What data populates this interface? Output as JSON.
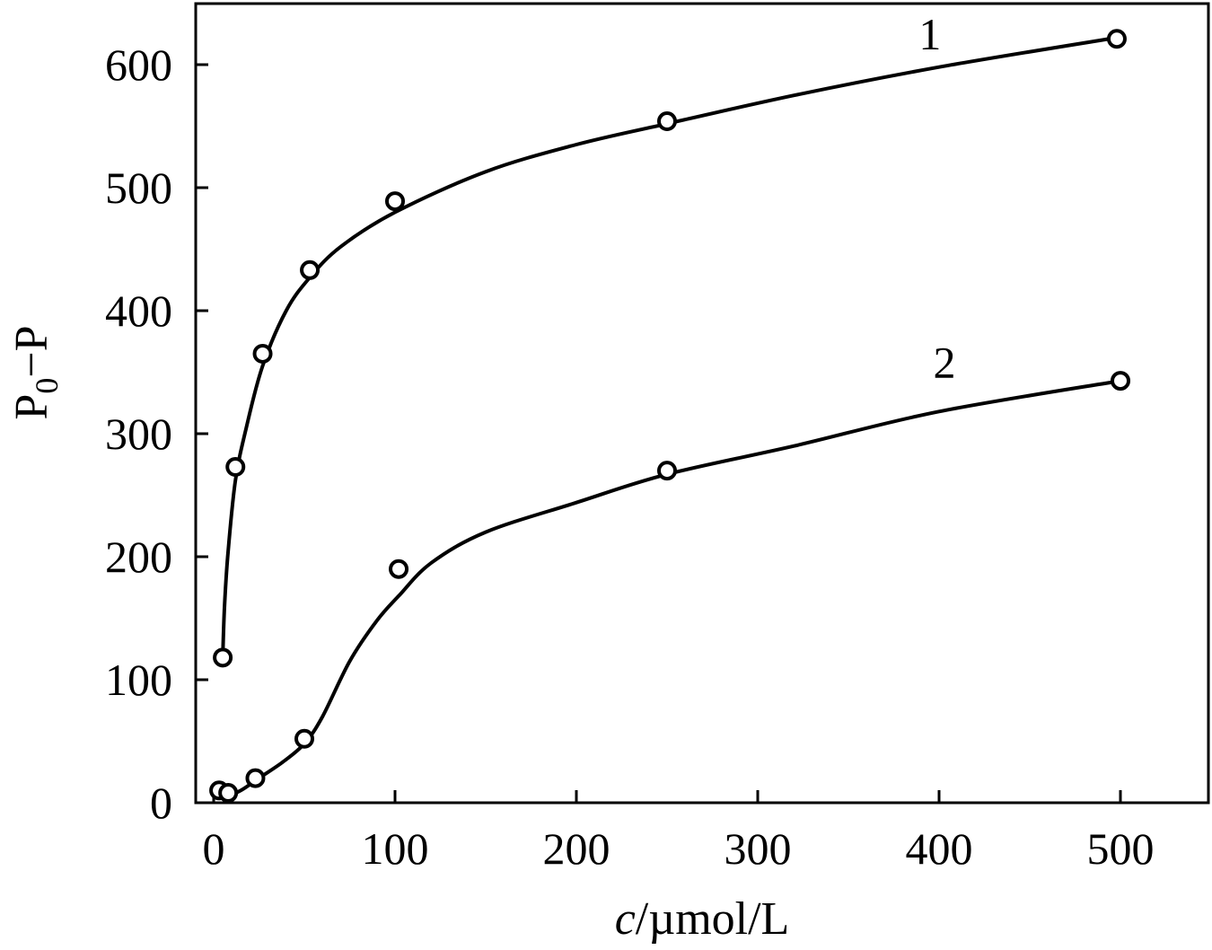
{
  "chart_data": {
    "type": "scatter",
    "xlabel_italic": "c",
    "xlabel_rest": "/µmol/L",
    "ylabel_main": "P",
    "ylabel_sub": "0",
    "ylabel_rest": "−P",
    "xlim": [
      -10,
      550
    ],
    "ylim": [
      -10,
      650
    ],
    "xticks": [
      0,
      100,
      200,
      300,
      400,
      500
    ],
    "yticks": [
      0,
      100,
      200,
      300,
      400,
      500,
      600
    ],
    "grid": false,
    "legend": "none",
    "series": [
      {
        "label": "1",
        "label_pos": [
          395,
          625
        ],
        "points": [
          [
            5,
            118
          ],
          [
            12,
            273
          ],
          [
            27,
            365
          ],
          [
            53,
            433
          ],
          [
            100,
            489
          ],
          [
            250,
            554
          ],
          [
            498,
            621
          ]
        ],
        "curve": [
          [
            5,
            118
          ],
          [
            6,
            160
          ],
          [
            8,
            205
          ],
          [
            12,
            262
          ],
          [
            18,
            305
          ],
          [
            27,
            355
          ],
          [
            40,
            400
          ],
          [
            53,
            427
          ],
          [
            70,
            452
          ],
          [
            100,
            480
          ],
          [
            150,
            513
          ],
          [
            200,
            535
          ],
          [
            250,
            552
          ],
          [
            320,
            575
          ],
          [
            400,
            598
          ],
          [
            498,
            622
          ]
        ]
      },
      {
        "label": "2",
        "label_pos": [
          403,
          358
        ],
        "points": [
          [
            3,
            10
          ],
          [
            8,
            8
          ],
          [
            23,
            20
          ],
          [
            50,
            52
          ],
          [
            102,
            190
          ],
          [
            250,
            270
          ],
          [
            500,
            343
          ]
        ],
        "curve": [
          [
            3,
            8
          ],
          [
            8,
            6
          ],
          [
            15,
            10
          ],
          [
            25,
            20
          ],
          [
            38,
            33
          ],
          [
            50,
            48
          ],
          [
            60,
            70
          ],
          [
            75,
            115
          ],
          [
            90,
            148
          ],
          [
            102,
            168
          ],
          [
            120,
            195
          ],
          [
            150,
            220
          ],
          [
            200,
            244
          ],
          [
            250,
            267
          ],
          [
            320,
            290
          ],
          [
            400,
            318
          ],
          [
            500,
            343
          ]
        ]
      }
    ]
  }
}
